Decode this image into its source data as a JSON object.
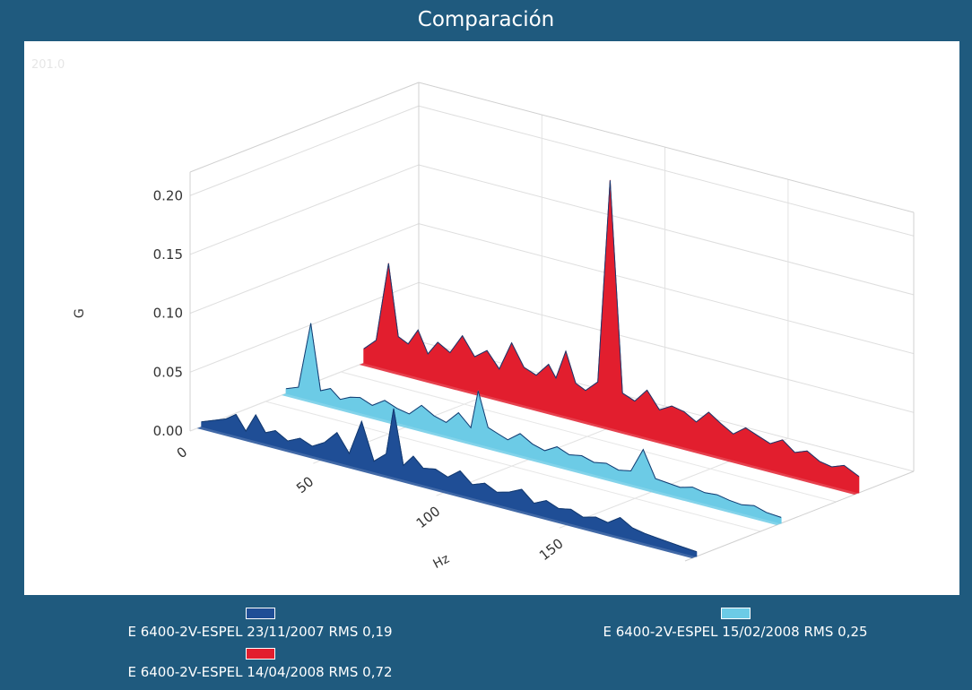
{
  "window": {
    "title": "Comparación"
  },
  "chart_data": {
    "type": "area",
    "title": "Comparación",
    "corner_readout": "201.0",
    "xlabel": "Hz",
    "ylabel": "G",
    "zlabel": "",
    "x_ticks": [
      "0",
      "50",
      "100",
      "150"
    ],
    "y_ticks": [
      "0.00",
      "0.05",
      "0.10",
      "0.15",
      "0.20"
    ],
    "xlim": [
      0,
      201
    ],
    "ylim": [
      0,
      0.22
    ],
    "grid": true,
    "legend_position": "bottom",
    "series": [
      {
        "name": "E 6400-2V-ESPEL 23/11/2007 RMS 0,19",
        "color": "#1f4e96",
        "x": [
          0,
          5,
          10,
          14,
          18,
          22,
          26,
          30,
          35,
          40,
          45,
          50,
          55,
          60,
          65,
          70,
          75,
          78,
          82,
          86,
          90,
          95,
          100,
          105,
          110,
          115,
          120,
          125,
          130,
          135,
          140,
          145,
          150,
          155,
          160,
          165,
          170,
          175,
          180,
          185,
          190,
          195,
          201
        ],
        "values": [
          0.004,
          0.008,
          0.012,
          0.018,
          0.006,
          0.022,
          0.009,
          0.013,
          0.007,
          0.012,
          0.008,
          0.014,
          0.025,
          0.01,
          0.04,
          0.009,
          0.018,
          0.058,
          0.012,
          0.022,
          0.014,
          0.016,
          0.012,
          0.02,
          0.011,
          0.015,
          0.01,
          0.013,
          0.018,
          0.009,
          0.014,
          0.01,
          0.012,
          0.008,
          0.011,
          0.009,
          0.016,
          0.01,
          0.008,
          0.007,
          0.006,
          0.005,
          0.004
        ]
      },
      {
        "name": "E 6400-2V-ESPEL 15/02/2008 RMS 0,25",
        "color": "#6ccbe6",
        "x": [
          0,
          5,
          10,
          14,
          18,
          22,
          26,
          30,
          35,
          40,
          45,
          50,
          55,
          60,
          65,
          70,
          75,
          78,
          82,
          86,
          90,
          95,
          100,
          105,
          110,
          115,
          120,
          125,
          130,
          135,
          140,
          145,
          150,
          155,
          160,
          165,
          170,
          175,
          180,
          185,
          190,
          195,
          201
        ],
        "values": [
          0.004,
          0.008,
          0.065,
          0.01,
          0.014,
          0.007,
          0.011,
          0.013,
          0.009,
          0.016,
          0.012,
          0.01,
          0.02,
          0.014,
          0.011,
          0.022,
          0.012,
          0.045,
          0.016,
          0.013,
          0.01,
          0.018,
          0.012,
          0.009,
          0.015,
          0.011,
          0.013,
          0.01,
          0.012,
          0.009,
          0.011,
          0.032,
          0.01,
          0.009,
          0.008,
          0.011,
          0.009,
          0.01,
          0.008,
          0.007,
          0.009,
          0.006,
          0.005
        ]
      },
      {
        "name": "E 6400-2V-ESPEL 14/04/2008 RMS 0,72",
        "color": "#e21e2e",
        "x": [
          0,
          5,
          10,
          14,
          18,
          22,
          26,
          30,
          35,
          40,
          45,
          50,
          55,
          60,
          65,
          70,
          75,
          78,
          82,
          86,
          90,
          95,
          100,
          105,
          110,
          115,
          120,
          125,
          130,
          135,
          140,
          145,
          150,
          155,
          160,
          165,
          170,
          175,
          180,
          185,
          190,
          195,
          201
        ],
        "values": [
          0.012,
          0.022,
          0.09,
          0.03,
          0.026,
          0.04,
          0.022,
          0.034,
          0.028,
          0.045,
          0.03,
          0.038,
          0.025,
          0.05,
          0.032,
          0.028,
          0.04,
          0.03,
          0.055,
          0.03,
          0.026,
          0.036,
          0.21,
          0.032,
          0.028,
          0.04,
          0.026,
          0.032,
          0.03,
          0.024,
          0.035,
          0.028,
          0.022,
          0.03,
          0.026,
          0.022,
          0.028,
          0.02,
          0.024,
          0.018,
          0.016,
          0.02,
          0.014
        ]
      }
    ]
  }
}
